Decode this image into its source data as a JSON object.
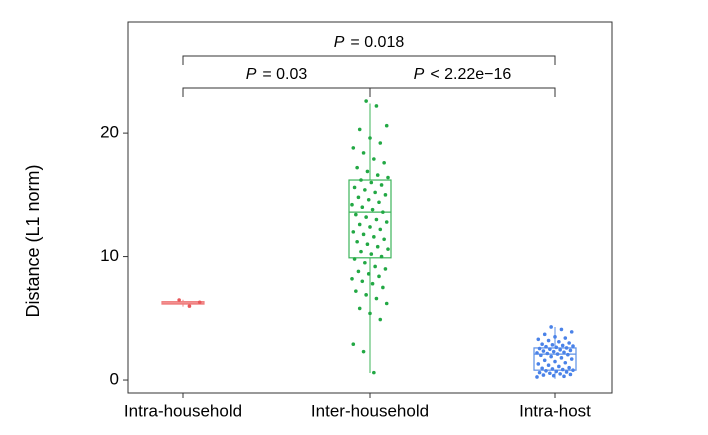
{
  "chart_data": {
    "type": "box",
    "y_label": "Distance (L1 norm)",
    "categories": [
      "Intra-household",
      "Inter-household",
      "Intra-host"
    ],
    "ylim": [
      -1.05,
      29.0
    ],
    "yticks": [
      0,
      10,
      20
    ],
    "boxes": [
      {
        "name": "Intra-household",
        "color": "#f08080",
        "point_color": "#e8575a",
        "min": 5.95,
        "q1": 6.15,
        "median": 6.25,
        "q3": 6.35,
        "max": 6.5,
        "points": [
          6.48,
          5.99,
          6.3
        ]
      },
      {
        "name": "Inter-household",
        "color": "#3cb45a",
        "point_color": "#22a844",
        "min": 0.57,
        "q1": 9.9,
        "median": 13.6,
        "q3": 16.2,
        "max": 22.4,
        "points": [
          22.6,
          22.2,
          20.6,
          20.3,
          19.6,
          19.2,
          18.8,
          18.4,
          17.9,
          17.6,
          17.2,
          16.9,
          16.6,
          16.4,
          16.2,
          16.0,
          15.8,
          15.6,
          15.4,
          15.2,
          15.0,
          14.8,
          14.6,
          14.4,
          14.2,
          14.0,
          13.8,
          13.6,
          13.4,
          13.2,
          13.0,
          12.8,
          12.6,
          12.4,
          12.2,
          12.0,
          11.8,
          11.6,
          11.4,
          11.2,
          11.0,
          10.8,
          10.6,
          10.4,
          10.2,
          10.0,
          9.8,
          9.5,
          9.2,
          9.0,
          8.8,
          8.6,
          8.4,
          8.2,
          8.0,
          7.8,
          7.5,
          7.2,
          6.9,
          6.6,
          6.2,
          5.8,
          5.4,
          4.9,
          2.9,
          2.3,
          0.6
        ]
      },
      {
        "name": "Intra-host",
        "color": "#5b8fe6",
        "point_color": "#4a82e8",
        "min": 0.1,
        "q1": 0.8,
        "median": 2.1,
        "q3": 2.6,
        "max": 4.3,
        "points": [
          4.3,
          4.1,
          3.9,
          3.7,
          3.5,
          3.4,
          3.3,
          3.2,
          3.1,
          3.0,
          2.9,
          2.85,
          2.8,
          2.75,
          2.7,
          2.65,
          2.6,
          2.55,
          2.5,
          2.45,
          2.4,
          2.35,
          2.3,
          2.25,
          2.2,
          2.15,
          2.1,
          2.05,
          2.0,
          1.9,
          1.8,
          1.7,
          1.6,
          1.5,
          1.4,
          1.3,
          1.2,
          1.1,
          1.0,
          0.95,
          0.9,
          0.85,
          0.8,
          0.75,
          0.7,
          0.65,
          0.6,
          0.55,
          0.5,
          0.45,
          0.4,
          0.35,
          0.3,
          0.25
        ]
      }
    ],
    "comparisons": [
      {
        "from": "Intra-household",
        "to": "Inter-household",
        "symbol": "P",
        "label": "=  0.03"
      },
      {
        "from": "Inter-household",
        "to": "Intra-host",
        "symbol": "P",
        "label": "<  2.22e−16"
      },
      {
        "from": "Intra-household",
        "to": "Intra-host",
        "symbol": "P",
        "label": "=  0.018"
      }
    ]
  }
}
